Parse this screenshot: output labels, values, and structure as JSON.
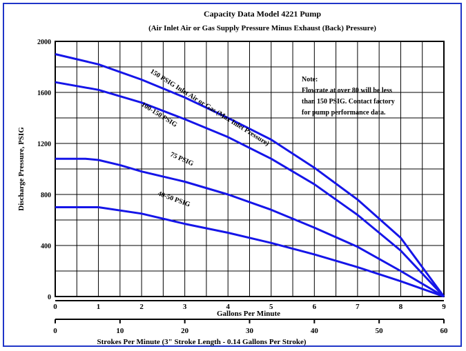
{
  "chart_data": {
    "type": "line",
    "title_line1": "Capacity Data Model 4221 Pump",
    "title_line2": "(Air Inlet Air or Gas Supply Pressure Minus Exhaust (Back) Pressure)",
    "xlabel": "Gallons Per Minute",
    "x2label": "Strokes Per Minute (3\" Stroke Length - 0.14 Gallons Per Stroke)",
    "ylabel": "Discharge Pressure, PSIG",
    "x_ticks": [
      "0",
      "1",
      "2",
      "3",
      "4",
      "5",
      "6",
      "7",
      "8",
      "9"
    ],
    "x2_ticks": [
      "0",
      "10",
      "20",
      "30",
      "40",
      "50",
      "60"
    ],
    "y_ticks": [
      "0",
      "400",
      "800",
      "1200",
      "1600",
      "2000"
    ],
    "xlim": [
      0,
      9
    ],
    "x2lim": [
      0,
      60
    ],
    "ylim": [
      0,
      2000
    ],
    "grid": true,
    "series_color": "#1515e8",
    "note_lines": [
      "Note:",
      "Flowrate at over 80 will be less",
      "than 150 PSIG. Contact factory",
      "for pump performance data."
    ],
    "series": [
      {
        "name": "150 PSIG Inlet Air or Gas (Max Inlet Pressure)",
        "x": [
          0,
          1,
          2,
          3,
          4,
          5,
          6,
          7,
          8,
          9
        ],
        "y": [
          1900,
          1820,
          1700,
          1560,
          1400,
          1230,
          1010,
          760,
          460,
          0
        ]
      },
      {
        "name": "100-150 PSIG",
        "x": [
          0,
          1,
          2,
          3,
          4,
          5,
          6,
          7,
          8,
          9
        ],
        "y": [
          1680,
          1620,
          1520,
          1390,
          1250,
          1080,
          880,
          640,
          360,
          0
        ]
      },
      {
        "name": "75 PSIG",
        "x": [
          0,
          0.7,
          1,
          1.5,
          2,
          3,
          4,
          5,
          6,
          7,
          8,
          9
        ],
        "y": [
          1080,
          1080,
          1070,
          1030,
          980,
          900,
          800,
          680,
          540,
          390,
          200,
          0
        ]
      },
      {
        "name": "40-50 PSIG",
        "x": [
          0,
          0.5,
          1,
          2,
          3,
          4,
          5,
          6,
          7,
          8,
          9
        ],
        "y": [
          700,
          700,
          700,
          650,
          570,
          500,
          420,
          330,
          230,
          120,
          0
        ]
      }
    ]
  }
}
